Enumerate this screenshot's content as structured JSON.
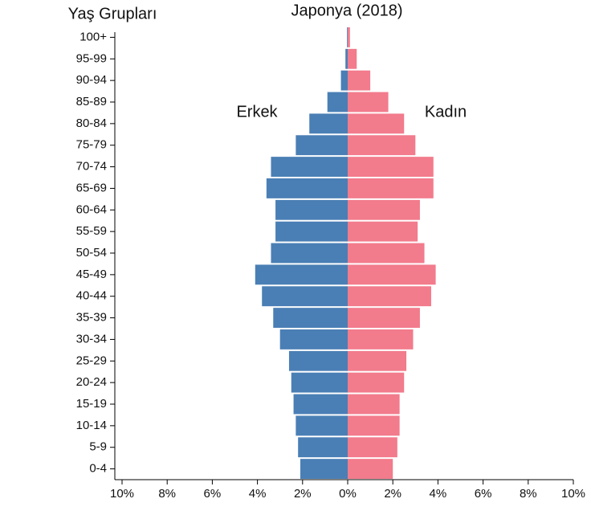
{
  "chart_data": {
    "type": "pyramid",
    "title": "Japonya (2018)",
    "y_label": "Yaş Grupları",
    "categories": [
      "100+",
      "95-99",
      "90-94",
      "85-89",
      "80-84",
      "75-79",
      "70-74",
      "65-69",
      "60-64",
      "55-59",
      "50-54",
      "45-49",
      "40-44",
      "35-39",
      "30-34",
      "25-29",
      "20-24",
      "15-19",
      "10-14",
      "5-9",
      "0-4"
    ],
    "series": [
      {
        "name": "Erkek",
        "color": "#4a7fb5",
        "values": [
          -0.03,
          -0.1,
          -0.3,
          -0.9,
          -1.7,
          -2.3,
          -3.4,
          -3.6,
          -3.2,
          -3.2,
          -3.4,
          -4.1,
          -3.8,
          -3.3,
          -3.0,
          -2.6,
          -2.5,
          -2.4,
          -2.3,
          -2.2,
          -2.1
        ]
      },
      {
        "name": "Kadın",
        "color": "#f27b8c",
        "values": [
          0.1,
          0.4,
          1.0,
          1.8,
          2.5,
          3.0,
          3.8,
          3.8,
          3.2,
          3.1,
          3.4,
          3.9,
          3.7,
          3.2,
          2.9,
          2.6,
          2.5,
          2.3,
          2.3,
          2.2,
          2.0
        ]
      }
    ],
    "xlim": [
      -10,
      10
    ],
    "xticks": [
      {
        "value": -10,
        "label": "10%"
      },
      {
        "value": -8,
        "label": "8%"
      },
      {
        "value": -6,
        "label": "6%"
      },
      {
        "value": -4,
        "label": "4%"
      },
      {
        "value": -2,
        "label": "2%"
      },
      {
        "value": 0,
        "label": "0%"
      },
      {
        "value": 2,
        "label": "2%"
      },
      {
        "value": 4,
        "label": "4%"
      },
      {
        "value": 6,
        "label": "6%"
      },
      {
        "value": 8,
        "label": "8%"
      },
      {
        "value": 10,
        "label": "10%"
      }
    ]
  }
}
